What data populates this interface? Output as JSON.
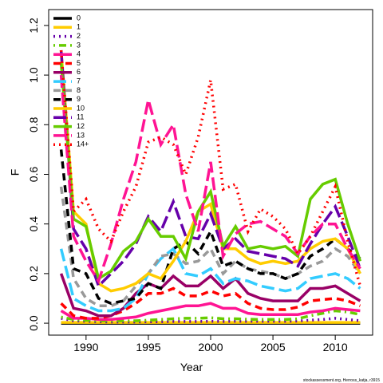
{
  "chart_data": {
    "type": "line",
    "x_label": "Year",
    "y_label": "F",
    "credit": "stockassessment.org, Herross_katja, r3915",
    "x": [
      1988,
      1989,
      1990,
      1991,
      1992,
      1993,
      1994,
      1995,
      1996,
      1997,
      1998,
      1999,
      2000,
      2001,
      2002,
      2003,
      2004,
      2005,
      2006,
      2007,
      2008,
      2009,
      2010,
      2011,
      2012
    ],
    "xlim": [
      1987,
      2013
    ],
    "xticks": [
      1990,
      1995,
      2000,
      2005,
      2010
    ],
    "ylim": [
      -0.048,
      1.264
    ],
    "yticks": [
      {
        "value": 0,
        "label": "0.0"
      },
      0.2,
      0.4,
      0.6,
      0.8,
      {
        "value": 1,
        "label": "1.0"
      },
      1.2
    ],
    "legend": "top-left",
    "series": [
      {
        "name": "0",
        "color": "#000000",
        "dash": "solid",
        "values": [
          0,
          0,
          0,
          0,
          0,
          0,
          0,
          0,
          0,
          0,
          0,
          0,
          0,
          0,
          0,
          0,
          0,
          0,
          0,
          0,
          0,
          0,
          0,
          0,
          0
        ]
      },
      {
        "name": "1",
        "color": "#ffcc00",
        "dash": "solid",
        "values": [
          0.003,
          0.003,
          0.003,
          0.003,
          0.003,
          0.003,
          0.003,
          0.003,
          0.003,
          0.003,
          0.003,
          0.003,
          0.003,
          0.003,
          0.003,
          0.003,
          0.003,
          0.003,
          0.003,
          0.003,
          0.003,
          0.003,
          0.003,
          0.003,
          0.003
        ]
      },
      {
        "name": "2",
        "color": "#6600aa",
        "dash": "dotted",
        "values": [
          0.02,
          0.01,
          0.008,
          0.006,
          0.005,
          0.005,
          0.005,
          0.006,
          0.006,
          0.007,
          0.007,
          0.007,
          0.008,
          0.007,
          0.008,
          0.008,
          0.008,
          0.008,
          0.008,
          0.009,
          0.012,
          0.015,
          0.02,
          0.015,
          0.01
        ]
      },
      {
        "name": "3",
        "color": "#66cc00",
        "dash": "dotdash",
        "values": [
          0.025,
          0.015,
          0.012,
          0.01,
          0.01,
          0.01,
          0.01,
          0.012,
          0.015,
          0.018,
          0.02,
          0.02,
          0.022,
          0.018,
          0.018,
          0.016,
          0.015,
          0.015,
          0.015,
          0.018,
          0.03,
          0.04,
          0.05,
          0.045,
          0.035
        ]
      },
      {
        "name": "4",
        "color": "#ff1493",
        "dash": "solid",
        "values": [
          0.05,
          0.02,
          0.02,
          0.015,
          0.015,
          0.02,
          0.025,
          0.04,
          0.05,
          0.06,
          0.07,
          0.07,
          0.08,
          0.06,
          0.06,
          0.04,
          0.035,
          0.035,
          0.035,
          0.035,
          0.045,
          0.05,
          0.06,
          0.055,
          0.05
        ]
      },
      {
        "name": "5",
        "color": "#ff0000",
        "dash": "dashed",
        "values": [
          0.08,
          0.03,
          0.02,
          0.02,
          0.03,
          0.05,
          0.08,
          0.12,
          0.12,
          0.14,
          0.11,
          0.11,
          0.13,
          0.11,
          0.12,
          0.08,
          0.06,
          0.055,
          0.055,
          0.065,
          0.09,
          0.095,
          0.1,
          0.09,
          0.07
        ]
      },
      {
        "name": "6",
        "color": "#990066",
        "dash": "solid",
        "values": [
          0.2,
          0.06,
          0.05,
          0.03,
          0.03,
          0.06,
          0.12,
          0.16,
          0.14,
          0.19,
          0.15,
          0.15,
          0.19,
          0.14,
          0.18,
          0.12,
          0.1,
          0.09,
          0.09,
          0.09,
          0.14,
          0.14,
          0.15,
          0.12,
          0.09
        ]
      },
      {
        "name": "7",
        "color": "#33ccff",
        "dash": "longdash",
        "values": [
          0.3,
          0.1,
          0.07,
          0.05,
          0.05,
          0.06,
          0.1,
          0.2,
          0.26,
          0.3,
          0.2,
          0.19,
          0.22,
          0.16,
          0.18,
          0.17,
          0.15,
          0.14,
          0.13,
          0.14,
          0.18,
          0.19,
          0.2,
          0.18,
          0.14
        ]
      },
      {
        "name": "8",
        "color": "#999999",
        "dash": "dashed",
        "values": [
          0.55,
          0.18,
          0.1,
          0.07,
          0.07,
          0.09,
          0.15,
          0.2,
          0.27,
          0.28,
          0.24,
          0.25,
          0.3,
          0.2,
          0.25,
          0.22,
          0.21,
          0.2,
          0.18,
          0.2,
          0.23,
          0.25,
          0.3,
          0.27,
          0.2
        ]
      },
      {
        "name": "9",
        "color": "#000000",
        "dash": "dashed",
        "values": [
          0.7,
          0.22,
          0.2,
          0.1,
          0.08,
          0.09,
          0.1,
          0.16,
          0.14,
          0.3,
          0.33,
          0.28,
          0.37,
          0.23,
          0.25,
          0.22,
          0.2,
          0.2,
          0.18,
          0.2,
          0.27,
          0.3,
          0.34,
          0.3,
          0.26
        ]
      },
      {
        "name": "10",
        "color": "#ffcc00",
        "dash": "solid",
        "values": [
          1.1,
          0.45,
          0.4,
          0.16,
          0.13,
          0.14,
          0.16,
          0.2,
          0.18,
          0.25,
          0.33,
          0.45,
          0.48,
          0.3,
          0.3,
          0.26,
          0.24,
          0.25,
          0.24,
          0.25,
          0.3,
          0.33,
          0.34,
          0.3,
          0.2
        ]
      },
      {
        "name": "11",
        "color": "#6600aa",
        "dash": "longdash",
        "values": [
          1.1,
          0.38,
          0.3,
          0.15,
          0.2,
          0.25,
          0.32,
          0.43,
          0.37,
          0.49,
          0.35,
          0.34,
          0.44,
          0.3,
          0.34,
          0.29,
          0.28,
          0.27,
          0.26,
          0.23,
          0.32,
          0.4,
          0.47,
          0.35,
          0.22
        ]
      },
      {
        "name": "12",
        "color": "#66cc00",
        "dash": "solid",
        "values": [
          1.05,
          0.42,
          0.39,
          0.18,
          0.21,
          0.29,
          0.33,
          0.42,
          0.35,
          0.35,
          0.26,
          0.45,
          0.53,
          0.31,
          0.39,
          0.3,
          0.31,
          0.3,
          0.31,
          0.27,
          0.5,
          0.56,
          0.58,
          0.4,
          0.25
        ]
      },
      {
        "name": "13",
        "color": "#ff1493",
        "dash": "longdash",
        "values": [
          1.0,
          0.35,
          0.25,
          0.17,
          0.32,
          0.5,
          0.65,
          0.9,
          0.72,
          0.8,
          0.52,
          0.37,
          0.65,
          0.27,
          0.36,
          0.4,
          0.41,
          0.38,
          0.35,
          0.28,
          0.35,
          0.4,
          0.4,
          0.3,
          0.22
        ]
      },
      {
        "name": "14+",
        "color": "#ff0000",
        "dash": "dotted",
        "values": [
          1.1,
          0.45,
          0.5,
          0.38,
          0.33,
          0.45,
          0.55,
          0.73,
          0.75,
          0.72,
          0.6,
          0.75,
          0.98,
          0.54,
          0.56,
          0.37,
          0.46,
          0.43,
          0.38,
          0.28,
          0.35,
          0.45,
          0.55,
          0.33,
          0.15
        ]
      }
    ]
  }
}
